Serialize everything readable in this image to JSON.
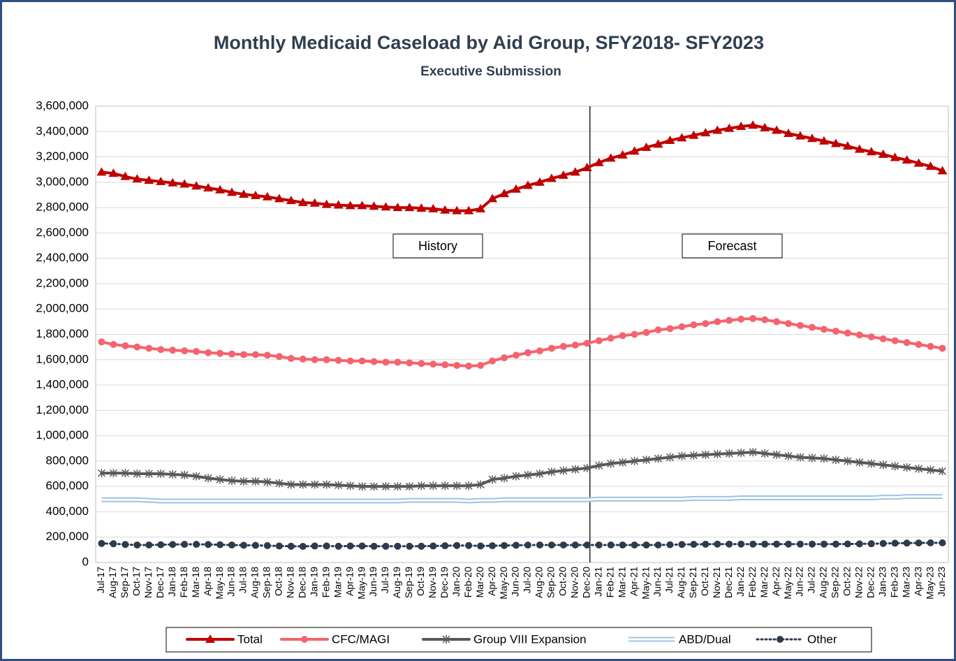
{
  "chart_data": {
    "type": "line",
    "title": "Monthly Medicaid Caseload by Aid Group, SFY2018- SFY2023",
    "subtitle": "Executive Submission",
    "annotations": [
      "History",
      "Forecast"
    ],
    "forecast_start": "Dec-20",
    "categories": [
      "Jul-17",
      "Aug-17",
      "Sep-17",
      "Oct-17",
      "Nov-17",
      "Dec-17",
      "Jan-18",
      "Feb-18",
      "Mar-18",
      "Apr-18",
      "May-18",
      "Jun-18",
      "Jul-18",
      "Aug-18",
      "Sep-18",
      "Oct-18",
      "Nov-18",
      "Dec-18",
      "Jan-19",
      "Feb-19",
      "Mar-19",
      "Apr-19",
      "May-19",
      "Jun-19",
      "Jul-19",
      "Aug-19",
      "Sep-19",
      "Oct-19",
      "Nov-19",
      "Dec-19",
      "Jan-20",
      "Feb-20",
      "Mar-20",
      "Apr-20",
      "May-20",
      "Jun-20",
      "Jul-20",
      "Aug-20",
      "Sep-20",
      "Oct-20",
      "Nov-20",
      "Dec-20",
      "Jan-21",
      "Feb-21",
      "Mar-21",
      "Apr-21",
      "May-21",
      "Jun-21",
      "Jul-21",
      "Aug-21",
      "Sep-21",
      "Oct-21",
      "Nov-21",
      "Dec-21",
      "Jan-22",
      "Feb-22",
      "Mar-22",
      "Apr-22",
      "May-22",
      "Jun-22",
      "Jul-22",
      "Aug-22",
      "Sep-22",
      "Oct-22",
      "Nov-22",
      "Dec-22",
      "Jan-23",
      "Feb-23",
      "Mar-23",
      "Apr-23",
      "May-23",
      "Jun-23"
    ],
    "ylim": [
      0,
      3600000
    ],
    "yticks": [
      0,
      {
        "value": 200000,
        "label": "200,000"
      },
      {
        "value": 400000,
        "label": "400,000"
      },
      {
        "value": 600000,
        "label": "600,000"
      },
      {
        "value": 800000,
        "label": "800,000"
      },
      {
        "value": 1000000,
        "label": "1,000,000"
      },
      {
        "value": 1200000,
        "label": "1,200,000"
      },
      {
        "value": 1400000,
        "label": "1,400,000"
      },
      {
        "value": 1600000,
        "label": "1,600,000"
      },
      {
        "value": 1800000,
        "label": "1,800,000"
      },
      {
        "value": 2000000,
        "label": "2,000,000"
      },
      {
        "value": 2200000,
        "label": "2,200,000"
      },
      {
        "value": 2400000,
        "label": "2,400,000"
      },
      {
        "value": 2600000,
        "label": "2,600,000"
      },
      {
        "value": 2800000,
        "label": "2,800,000"
      },
      {
        "value": 3000000,
        "label": "3,000,000"
      },
      {
        "value": 3200000,
        "label": "3,200,000"
      },
      {
        "value": 3400000,
        "label": "3,400,000"
      },
      {
        "value": 3600000,
        "label": "3,600,000"
      }
    ],
    "grid": true,
    "legend": "bottom",
    "series": [
      {
        "name": "Total",
        "color": "#c00000",
        "marker": "triangle",
        "values": [
          3080000,
          3070000,
          3045000,
          3025000,
          3015000,
          3005000,
          2995000,
          2985000,
          2970000,
          2955000,
          2940000,
          2920000,
          2905000,
          2895000,
          2885000,
          2870000,
          2855000,
          2840000,
          2835000,
          2825000,
          2820000,
          2815000,
          2815000,
          2810000,
          2805000,
          2800000,
          2800000,
          2795000,
          2790000,
          2780000,
          2775000,
          2775000,
          2790000,
          2870000,
          2910000,
          2945000,
          2975000,
          3000000,
          3030000,
          3055000,
          3080000,
          3115000,
          3155000,
          3190000,
          3215000,
          3245000,
          3275000,
          3300000,
          3330000,
          3350000,
          3370000,
          3390000,
          3410000,
          3425000,
          3440000,
          3450000,
          3430000,
          3410000,
          3385000,
          3365000,
          3345000,
          3325000,
          3305000,
          3285000,
          3260000,
          3240000,
          3220000,
          3195000,
          3175000,
          3150000,
          3125000,
          3090000
        ]
      },
      {
        "name": "CFC/MAGI",
        "color": "#f4646e",
        "marker": "circle",
        "values": [
          1740000,
          1720000,
          1710000,
          1700000,
          1690000,
          1680000,
          1675000,
          1670000,
          1665000,
          1655000,
          1650000,
          1645000,
          1640000,
          1640000,
          1635000,
          1625000,
          1610000,
          1605000,
          1600000,
          1600000,
          1595000,
          1590000,
          1590000,
          1585000,
          1580000,
          1580000,
          1575000,
          1570000,
          1565000,
          1560000,
          1555000,
          1550000,
          1555000,
          1590000,
          1615000,
          1635000,
          1655000,
          1670000,
          1690000,
          1705000,
          1715000,
          1730000,
          1750000,
          1770000,
          1790000,
          1800000,
          1815000,
          1835000,
          1845000,
          1860000,
          1875000,
          1885000,
          1900000,
          1910000,
          1920000,
          1925000,
          1915000,
          1900000,
          1885000,
          1870000,
          1855000,
          1840000,
          1825000,
          1810000,
          1795000,
          1780000,
          1765000,
          1750000,
          1735000,
          1720000,
          1705000,
          1690000
        ]
      },
      {
        "name": "Group VIII Expansion",
        "color": "#595959",
        "marker": "star",
        "values": [
          705000,
          705000,
          705000,
          700000,
          700000,
          700000,
          695000,
          690000,
          680000,
          665000,
          655000,
          645000,
          640000,
          640000,
          635000,
          625000,
          615000,
          615000,
          615000,
          615000,
          610000,
          605000,
          600000,
          600000,
          600000,
          600000,
          600000,
          605000,
          605000,
          605000,
          605000,
          605000,
          615000,
          655000,
          665000,
          680000,
          690000,
          700000,
          715000,
          725000,
          735000,
          745000,
          765000,
          780000,
          790000,
          800000,
          810000,
          820000,
          830000,
          840000,
          845000,
          850000,
          855000,
          860000,
          865000,
          870000,
          860000,
          850000,
          840000,
          830000,
          825000,
          820000,
          810000,
          800000,
          790000,
          780000,
          770000,
          760000,
          750000,
          740000,
          730000,
          720000
        ]
      },
      {
        "name": "ABD/Dual",
        "color": "#9dc3e6",
        "marker": "double",
        "values": [
          495000,
          495000,
          495000,
          495000,
          490000,
          485000,
          485000,
          485000,
          485000,
          485000,
          485000,
          485000,
          485000,
          485000,
          485000,
          485000,
          485000,
          485000,
          485000,
          485000,
          485000,
          485000,
          485000,
          485000,
          485000,
          485000,
          490000,
          490000,
          490000,
          490000,
          490000,
          485000,
          490000,
          490000,
          495000,
          495000,
          495000,
          495000,
          495000,
          495000,
          495000,
          495000,
          500000,
          500000,
          500000,
          500000,
          500000,
          500000,
          500000,
          500000,
          505000,
          505000,
          505000,
          505000,
          510000,
          510000,
          510000,
          510000,
          510000,
          510000,
          510000,
          510000,
          510000,
          510000,
          510000,
          510000,
          515000,
          515000,
          520000,
          520000,
          520000,
          520000
        ]
      },
      {
        "name": "Other",
        "color": "#2e3b4e",
        "marker": "dot",
        "values": [
          150000,
          148000,
          142000,
          138000,
          138000,
          140000,
          142000,
          143000,
          143000,
          142000,
          140000,
          138000,
          136000,
          135000,
          133000,
          130000,
          128000,
          127000,
          130000,
          130000,
          128000,
          130000,
          130000,
          128000,
          128000,
          128000,
          128000,
          128000,
          130000,
          132000,
          134000,
          134000,
          130000,
          132000,
          134000,
          136000,
          137000,
          138000,
          138000,
          138000,
          138000,
          138000,
          138000,
          138000,
          138000,
          138000,
          138000,
          138000,
          140000,
          142000,
          143000,
          144000,
          145000,
          145000,
          145000,
          145000,
          145000,
          145000,
          145000,
          145000,
          145000,
          145000,
          145000,
          146000,
          147000,
          148000,
          150000,
          152000,
          153000,
          154000,
          155000,
          155000
        ]
      }
    ]
  }
}
